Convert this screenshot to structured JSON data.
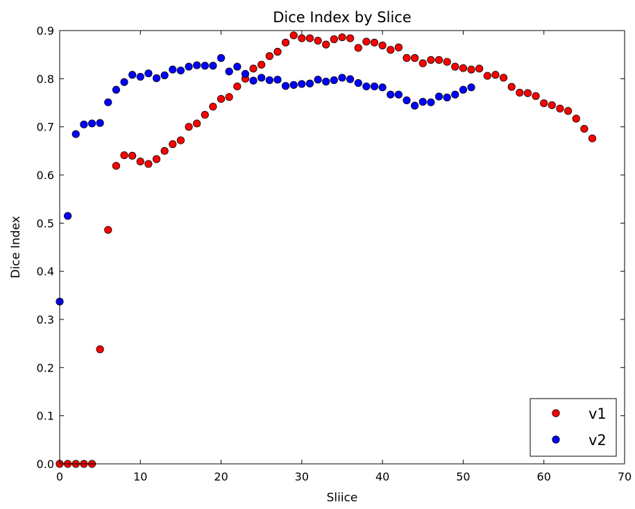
{
  "chart_data": {
    "type": "scatter",
    "title": "Dice Index by Slice",
    "xlabel": "Sliice",
    "ylabel": "Dice Index",
    "xlim": [
      0,
      70
    ],
    "ylim": [
      0.0,
      0.9
    ],
    "xticks": [
      0,
      10,
      20,
      30,
      40,
      50,
      60,
      70
    ],
    "yticks": [
      0.0,
      0.1,
      0.2,
      0.3,
      0.4,
      0.5,
      0.6,
      0.7,
      0.8,
      0.9
    ],
    "xtick_labels": [
      "0",
      "10",
      "20",
      "30",
      "40",
      "50",
      "60",
      "70"
    ],
    "ytick_labels": [
      "0.0",
      "0.1",
      "0.2",
      "0.3",
      "0.4",
      "0.5",
      "0.6",
      "0.7",
      "0.8",
      "0.9"
    ],
    "grid": false,
    "legend_position": "bottom-right",
    "series": [
      {
        "name": "v1",
        "color": "#ff0000",
        "x": [
          0,
          1,
          2,
          3,
          4,
          5,
          6,
          7,
          8,
          9,
          10,
          11,
          12,
          13,
          14,
          15,
          16,
          17,
          18,
          19,
          20,
          21,
          22,
          23,
          24,
          25,
          26,
          27,
          28,
          29,
          30,
          31,
          32,
          33,
          34,
          35,
          36,
          37,
          38,
          39,
          40,
          41,
          42,
          43,
          44,
          45,
          46,
          47,
          48,
          49,
          50,
          51,
          52,
          53,
          54,
          55,
          56,
          57,
          58,
          59,
          60,
          61,
          62,
          63,
          64,
          65,
          66
        ],
        "y": [
          0.0,
          0.0,
          0.0,
          0.0,
          0.0,
          0.238,
          0.486,
          0.619,
          0.641,
          0.64,
          0.628,
          0.623,
          0.633,
          0.65,
          0.664,
          0.672,
          0.7,
          0.707,
          0.725,
          0.742,
          0.758,
          0.762,
          0.784,
          0.8,
          0.821,
          0.829,
          0.847,
          0.856,
          0.875,
          0.89,
          0.884,
          0.884,
          0.879,
          0.871,
          0.882,
          0.886,
          0.884,
          0.864,
          0.877,
          0.875,
          0.869,
          0.86,
          0.865,
          0.843,
          0.843,
          0.832,
          0.839,
          0.839,
          0.835,
          0.825,
          0.822,
          0.819,
          0.821,
          0.806,
          0.808,
          0.802,
          0.783,
          0.771,
          0.77,
          0.764,
          0.749,
          0.745,
          0.738,
          0.733,
          0.717,
          0.696,
          0.676
        ]
      },
      {
        "name": "v2",
        "color": "#0000ff",
        "x": [
          0,
          1,
          2,
          3,
          4,
          5,
          6,
          7,
          8,
          9,
          10,
          11,
          12,
          13,
          14,
          15,
          16,
          17,
          18,
          19,
          20,
          21,
          22,
          23,
          24,
          25,
          26,
          27,
          28,
          29,
          30,
          31,
          32,
          33,
          34,
          35,
          36,
          37,
          38,
          39,
          40,
          41,
          42,
          43,
          44,
          45,
          46,
          47,
          48,
          49,
          50,
          51
        ],
        "y": [
          0.337,
          0.515,
          0.685,
          0.705,
          0.707,
          0.708,
          0.751,
          0.777,
          0.793,
          0.808,
          0.804,
          0.811,
          0.801,
          0.807,
          0.819,
          0.817,
          0.825,
          0.828,
          0.827,
          0.827,
          0.843,
          0.815,
          0.825,
          0.81,
          0.796,
          0.802,
          0.797,
          0.798,
          0.785,
          0.787,
          0.789,
          0.79,
          0.798,
          0.794,
          0.797,
          0.802,
          0.799,
          0.791,
          0.784,
          0.784,
          0.782,
          0.767,
          0.767,
          0.755,
          0.744,
          0.752,
          0.751,
          0.763,
          0.761,
          0.767,
          0.777,
          0.782
        ]
      }
    ]
  }
}
